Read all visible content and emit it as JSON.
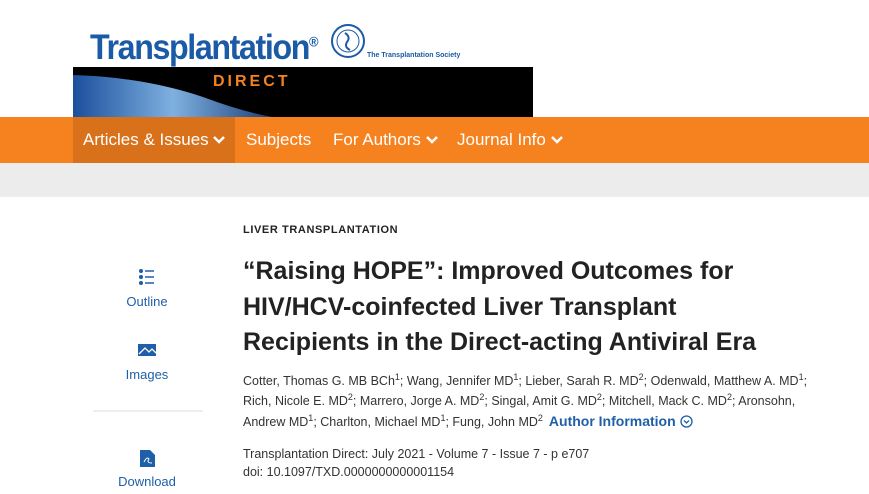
{
  "header": {
    "brand": "Transplantation",
    "brand_mark": "®",
    "brand_sub": "DIRECT",
    "society": "The Transplantation Society"
  },
  "nav": {
    "items": [
      "Articles & Issues",
      "Subjects",
      "For Authors",
      "Journal Info"
    ]
  },
  "sidebar": {
    "items": [
      "Outline",
      "Images",
      "Download"
    ]
  },
  "article": {
    "section": "LIVER TRANSPLANTATION",
    "title": "“Raising HOPE”: Improved Outcomes for HIV/HCV-coinfected Liver Transplant Recipients in the Direct-acting Antiviral Era",
    "author_separator": "; ",
    "authors": [
      {
        "name": "Cotter, Thomas G. MB BCh",
        "sup": "1"
      },
      {
        "name": "Wang, Jennifer MD",
        "sup": "1"
      },
      {
        "name": "Lieber, Sarah R. MD",
        "sup": "2"
      },
      {
        "name": "Odenwald, Matthew A. MD",
        "sup": "1"
      },
      {
        "name": "Rich, Nicole E. MD",
        "sup": "2"
      },
      {
        "name": "Marrero, Jorge A. MD",
        "sup": "2"
      },
      {
        "name": "Singal, Amit G. MD",
        "sup": "2"
      },
      {
        "name": "Mitchell, Mack C. MD",
        "sup": "2"
      },
      {
        "name": "Aronsohn, Andrew MD",
        "sup": "1"
      },
      {
        "name": "Charlton, Michael MD",
        "sup": "1"
      },
      {
        "name": "Fung, John MD",
        "sup": "2"
      }
    ],
    "author_info": "Author Information",
    "citation": "Transplantation Direct: July 2021 - Volume 7 - Issue 7 - p e707",
    "doi": "doi: 10.1097/TXD.0000000000001154"
  }
}
